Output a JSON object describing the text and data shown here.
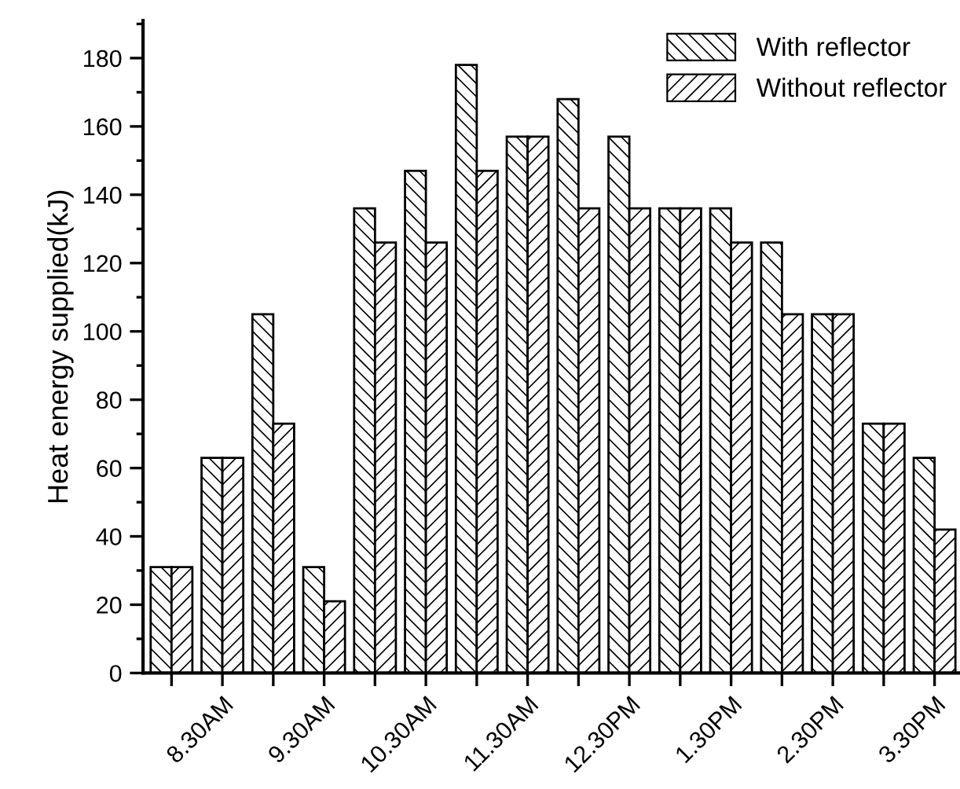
{
  "chart_data": {
    "type": "bar",
    "ylabel": "Heat energy supplied(kJ)",
    "categories": [
      null,
      "8.30AM",
      null,
      "9.30AM",
      null,
      "10.30AM",
      null,
      "11.30AM",
      null,
      "12.30PM",
      null,
      "1.30PM",
      null,
      "2.30PM",
      null,
      "3.30PM"
    ],
    "series": [
      {
        "name": "With reflector",
        "color": "#000000",
        "values": [
          31,
          63,
          105,
          31,
          136,
          147,
          178,
          157,
          168,
          157,
          136,
          136,
          126,
          105,
          73,
          63
        ]
      },
      {
        "name": "Without reflector",
        "color": "#000000",
        "values": [
          31,
          63,
          73,
          21,
          126,
          126,
          147,
          157,
          136,
          136,
          136,
          126,
          105,
          105,
          73,
          42
        ]
      }
    ],
    "ylim": [
      0,
      191
    ],
    "yticks": [
      0,
      20,
      40,
      60,
      80,
      100,
      120,
      140,
      160,
      180
    ],
    "grid": false,
    "legend": "top right"
  }
}
